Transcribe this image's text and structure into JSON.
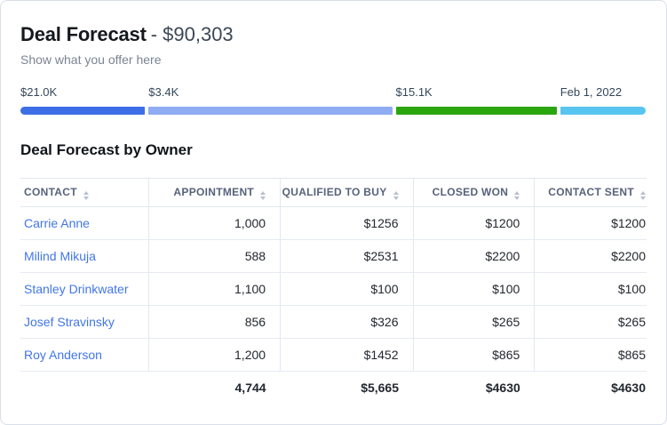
{
  "card": {
    "title": "Deal Forecast",
    "title_value": "- $90,303",
    "subtitle": "Show what you offer here"
  },
  "funnel": {
    "segments": [
      {
        "label": "$21.0K",
        "color": "#3d6ee5",
        "width_pct": 19.9
      },
      {
        "label": "$3.4K",
        "color": "#8fabf2",
        "width_pct": 38.9
      },
      {
        "label": "$15.1K",
        "color": "#2ca60f",
        "width_pct": 25.7
      },
      {
        "label": "Feb 1, 2022",
        "color": "#58c5f0",
        "width_pct": 13.7
      }
    ]
  },
  "table": {
    "title": "Deal Forecast by Owner",
    "columns": [
      {
        "label": "CONTACT",
        "align": "left"
      },
      {
        "label": "APPOINTMENT",
        "align": "right"
      },
      {
        "label": "QUALIFIED TO BUY",
        "align": "right"
      },
      {
        "label": "CLOSED WON",
        "align": "right"
      },
      {
        "label": "CONTACT SENT",
        "align": "right"
      }
    ],
    "rows": [
      {
        "contact": "Carrie Anne",
        "values": [
          "1,000",
          "$1256",
          "$1200",
          "$1200"
        ]
      },
      {
        "contact": "Milind Mikuja",
        "values": [
          "588",
          "$2531",
          "$2200",
          "$2200"
        ]
      },
      {
        "contact": "Stanley Drinkwater",
        "values": [
          "1,100",
          "$100",
          "$100",
          "$100"
        ]
      },
      {
        "contact": "Josef Stravinsky",
        "values": [
          "856",
          "$326",
          "$265",
          "$265"
        ]
      },
      {
        "contact": "Roy Anderson",
        "values": [
          "1,200",
          "$1452",
          "$865",
          "$865"
        ]
      }
    ],
    "totals": [
      "",
      "4,744",
      "$5,665",
      "$4630",
      "$4630"
    ]
  },
  "colors": {
    "link": "#4176e8",
    "segment_blue": "#3d6ee5",
    "segment_periwinkle": "#8fabf2",
    "segment_green": "#2ca60f",
    "segment_cyan": "#58c5f0",
    "border": "#e3e7f0"
  }
}
